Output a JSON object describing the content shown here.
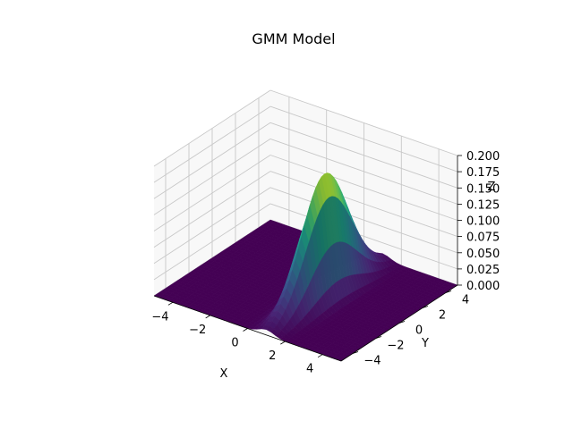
{
  "chart_data": {
    "type": "surface3d",
    "title": "GMM Model",
    "xlabel": "X",
    "ylabel": "Y",
    "zlabel": "Z",
    "xlim": [
      -5,
      5
    ],
    "ylim": [
      -5,
      5
    ],
    "zlim": [
      0,
      0.2
    ],
    "x_ticks": [
      -4,
      -2,
      0,
      2,
      4
    ],
    "y_ticks": [
      -4,
      -2,
      0,
      2,
      4
    ],
    "z_ticks": [
      0.0,
      0.025,
      0.05,
      0.075,
      0.1,
      0.125,
      0.15,
      0.175,
      0.2
    ],
    "x_tick_labels": [
      "−4",
      "−2",
      "0",
      "2",
      "4"
    ],
    "y_tick_labels": [
      "−4",
      "−2",
      "0",
      "2",
      "4"
    ],
    "z_tick_labels": [
      "0.000",
      "0.025",
      "0.050",
      "0.075",
      "0.100",
      "0.125",
      "0.150",
      "0.175",
      "0.200"
    ],
    "colormap": "viridis",
    "grid": true,
    "surface": {
      "function": "gaussian",
      "center": [
        1.0,
        0.0
      ],
      "sigma_x": 0.4,
      "sigma_y": 2.0,
      "peak": 0.19,
      "grid_n": 40
    }
  }
}
